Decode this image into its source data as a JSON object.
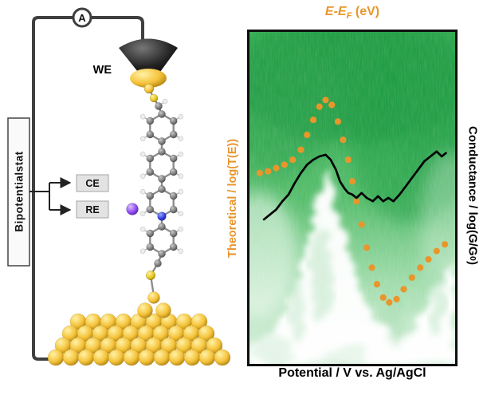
{
  "figure": {
    "schematic": {
      "ammeter_label": "A",
      "we_label": "WE",
      "bipotentiostat_label": "Bipotentialstat",
      "ce_label": "CE",
      "re_label": "RE",
      "molecule_colors": {
        "carbon": "#787878",
        "hydrogen": "#ededed",
        "sulfur": "#e8c81f",
        "nitrogen": "#2c3fd9",
        "counter_ion": "#8a46ee",
        "gold": "#f5c33a"
      }
    },
    "plot": {
      "top_xlabel": {
        "pre": "E-E",
        "sub": "F",
        "post": " (eV)"
      },
      "left_ylabel": "Theoretical / log(T(E))",
      "right_ylabel": {
        "pre": "Conductance / log(G/G",
        "sub": "0",
        "post": ")"
      },
      "bottom_xlabel": "Potential / V vs. Ag/AgCl",
      "accent_orange": "#e8962c",
      "heatmap_green": "#3cb254"
    }
  },
  "chart_data": {
    "type": "scatter",
    "title": "",
    "top_xlabel": "E-EF (eV)",
    "bottom_xlabel": "Potential / V vs. Ag/AgCl",
    "left_ylabel": "Theoretical / log(T(E))",
    "right_ylabel": "Conductance / log(G/G0)",
    "axis_ticks": "none visible; coordinates normalized 0-1 (x: left-right, y: bottom-top)",
    "background": "2D conductance-histogram heatmap in green with white low-density mountain-shaped region at bottom",
    "legend_position": "none",
    "grid": false,
    "series": [
      {
        "name": "theoretical-logT",
        "style": "dotted",
        "color": "#e8962c",
        "x": [
          0.05,
          0.09,
          0.13,
          0.17,
          0.21,
          0.25,
          0.28,
          0.31,
          0.34,
          0.37,
          0.4,
          0.43,
          0.455,
          0.48,
          0.5,
          0.52,
          0.545,
          0.57,
          0.595,
          0.62,
          0.65,
          0.68,
          0.715,
          0.75,
          0.79,
          0.83,
          0.87,
          0.91,
          0.95
        ],
        "y": [
          0.575,
          0.58,
          0.59,
          0.6,
          0.615,
          0.645,
          0.69,
          0.735,
          0.775,
          0.795,
          0.78,
          0.73,
          0.675,
          0.615,
          0.55,
          0.49,
          0.42,
          0.35,
          0.29,
          0.24,
          0.2,
          0.185,
          0.195,
          0.225,
          0.26,
          0.29,
          0.315,
          0.34,
          0.36
        ]
      },
      {
        "name": "conductance-logG",
        "style": "solid",
        "color": "#000000",
        "x": [
          0.07,
          0.1,
          0.13,
          0.16,
          0.19,
          0.22,
          0.25,
          0.28,
          0.31,
          0.34,
          0.37,
          0.395,
          0.42,
          0.44,
          0.46,
          0.48,
          0.5,
          0.52,
          0.545,
          0.57,
          0.6,
          0.625,
          0.65,
          0.675,
          0.7,
          0.73,
          0.76,
          0.79,
          0.82,
          0.85,
          0.88,
          0.91,
          0.935,
          0.955
        ],
        "y": [
          0.435,
          0.45,
          0.465,
          0.49,
          0.51,
          0.545,
          0.575,
          0.6,
          0.615,
          0.625,
          0.63,
          0.615,
          0.585,
          0.55,
          0.53,
          0.515,
          0.51,
          0.5,
          0.515,
          0.5,
          0.49,
          0.505,
          0.49,
          0.5,
          0.49,
          0.51,
          0.535,
          0.56,
          0.585,
          0.61,
          0.625,
          0.64,
          0.625,
          0.635
        ]
      }
    ]
  }
}
